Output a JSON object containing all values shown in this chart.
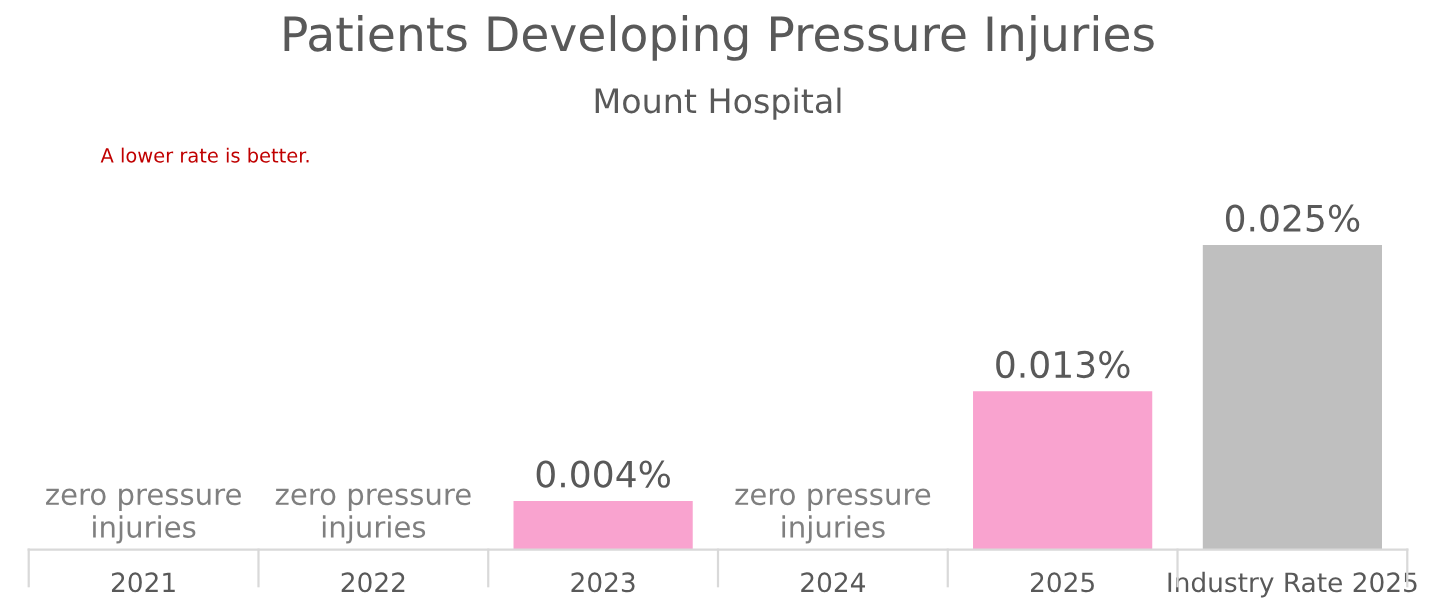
{
  "chart_data": {
    "type": "bar",
    "title": "Patients Developing Pressure Injuries",
    "subtitle": "Mount Hospital",
    "annotations": [
      "A lower rate is better."
    ],
    "categories": [
      "2021",
      "2022",
      "2023",
      "2024",
      "2025",
      "Industry Rate 2025"
    ],
    "values": [
      0,
      0,
      0.004,
      0,
      0.013,
      0.025
    ],
    "colors": [
      "#f9a3cf",
      "#f9a3cf",
      "#f9a3cf",
      "#f9a3cf",
      "#f9a3cf",
      "#bfbfbf"
    ],
    "value_labels": [
      "zero pressure\ninjuries",
      "zero pressure\ninjuries",
      "0.004%",
      "zero pressure\ninjuries",
      "0.013%",
      "0.025%"
    ],
    "grid": false,
    "legend": false
  }
}
